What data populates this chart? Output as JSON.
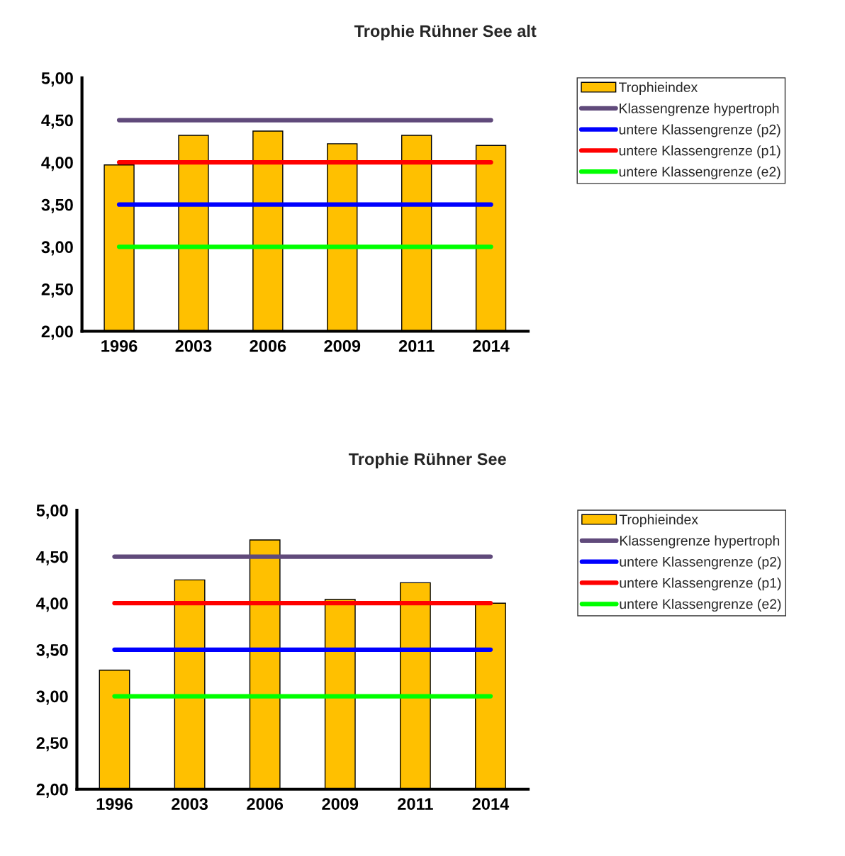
{
  "chart_data": [
    {
      "type": "bar",
      "title": "Trophie Rühner See alt",
      "categories": [
        "1996",
        "2003",
        "2006",
        "2009",
        "2011",
        "2014"
      ],
      "series": [
        {
          "name": "Trophieindex",
          "color": "#ffc000",
          "values": [
            3.97,
            4.32,
            4.37,
            4.22,
            4.32,
            4.2
          ]
        },
        {
          "name": "Klassengrenze hypertroph",
          "type": "line",
          "color": "#604a7b",
          "values": [
            4.5,
            4.5,
            4.5,
            4.5,
            4.5,
            4.5
          ]
        },
        {
          "name": "untere Klassengrenze (p2)",
          "type": "line",
          "color": "#0000ff",
          "values": [
            3.5,
            3.5,
            3.5,
            3.5,
            3.5,
            3.5
          ]
        },
        {
          "name": "untere Klassengrenze (p1)",
          "type": "line",
          "color": "#ff0000",
          "values": [
            4.0,
            4.0,
            4.0,
            4.0,
            4.0,
            4.0
          ]
        },
        {
          "name": "untere Klassengrenze (e2)",
          "type": "line",
          "color": "#00ff00",
          "values": [
            3.0,
            3.0,
            3.0,
            3.0,
            3.0,
            3.0
          ]
        }
      ],
      "ylim": [
        2,
        5
      ],
      "yticks": [
        {
          "value": 2,
          "label": "2,00"
        },
        {
          "value": 2.5,
          "label": "2,50"
        },
        {
          "value": 3,
          "label": "3,00"
        },
        {
          "value": 3.5,
          "label": "3,50"
        },
        {
          "value": 4,
          "label": "4,00"
        },
        {
          "value": 4.5,
          "label": "4,50"
        },
        {
          "value": 5,
          "label": "5,00"
        }
      ],
      "grid": false,
      "legend": "right"
    },
    {
      "type": "bar",
      "title": "Trophie Rühner See",
      "categories": [
        "1996",
        "2003",
        "2006",
        "2009",
        "2011",
        "2014"
      ],
      "series": [
        {
          "name": "Trophieindex",
          "color": "#ffc000",
          "values": [
            3.28,
            4.25,
            4.68,
            4.04,
            4.22,
            4.0
          ]
        },
        {
          "name": "Klassengrenze hypertroph",
          "type": "line",
          "color": "#604a7b",
          "values": [
            4.5,
            4.5,
            4.5,
            4.5,
            4.5,
            4.5
          ]
        },
        {
          "name": "untere Klassengrenze (p2)",
          "type": "line",
          "color": "#0000ff",
          "values": [
            3.5,
            3.5,
            3.5,
            3.5,
            3.5,
            3.5
          ]
        },
        {
          "name": "untere Klassengrenze (p1)",
          "type": "line",
          "color": "#ff0000",
          "values": [
            4.0,
            4.0,
            4.0,
            4.0,
            4.0,
            4.0
          ]
        },
        {
          "name": "untere Klassengrenze (e2)",
          "type": "line",
          "color": "#00ff00",
          "values": [
            3.0,
            3.0,
            3.0,
            3.0,
            3.0,
            3.0
          ]
        }
      ],
      "ylim": [
        2,
        5
      ],
      "yticks": [
        {
          "value": 2,
          "label": "2,00"
        },
        {
          "value": 2.5,
          "label": "2,50"
        },
        {
          "value": 3,
          "label": "3,00"
        },
        {
          "value": 3.5,
          "label": "3,50"
        },
        {
          "value": 4,
          "label": "4,00"
        },
        {
          "value": 4.5,
          "label": "4,50"
        },
        {
          "value": 5,
          "label": "5,00"
        }
      ],
      "grid": false,
      "legend": "right"
    }
  ]
}
